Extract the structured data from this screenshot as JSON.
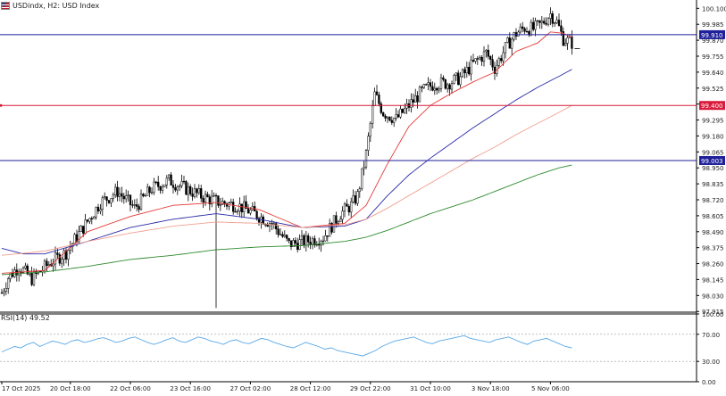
{
  "header": {
    "symbol_text": "USDindx, H2:  USD Index",
    "flag_icon": "us-flag-icon"
  },
  "rsi_label": "RSI(14) 49.52",
  "colors": {
    "bull": "#ffffff",
    "bear": "#000000",
    "ema_fast": "#e53935",
    "ema_mid": "#2a2aa8",
    "ema_slow": "#f0a090",
    "ema_long": "#2e8b2e",
    "hline_blue": "#1f1f9a",
    "hline_red": "#d81b3a",
    "rsi": "#5aa8e6"
  },
  "chart_data": [
    {
      "type": "candlestick",
      "ylim": [
        97.91,
        100.16
      ],
      "price_ticks": [
        "100.100",
        "99.985",
        "99.870",
        "99.755",
        "99.640",
        "99.525",
        "99.410",
        "99.295",
        "99.180",
        "99.065",
        "98.950",
        "98.835",
        "98.720",
        "98.605",
        "98.490",
        "98.375",
        "98.260",
        "98.145",
        "98.030",
        "97.915"
      ],
      "x_ticks": [
        {
          "index": 0,
          "label": "17 Oct 2025"
        },
        {
          "index": 32,
          "label": "20 Oct 18:00"
        },
        {
          "index": 60,
          "label": "22 Oct 06:00"
        },
        {
          "index": 88,
          "label": "23 Oct 16:00"
        },
        {
          "index": 116,
          "label": "27 Oct 02:00"
        },
        {
          "index": 144,
          "label": "28 Oct 12:00"
        },
        {
          "index": 172,
          "label": "29 Oct 22:00"
        },
        {
          "index": 200,
          "label": "31 Oct 10:00"
        },
        {
          "index": 228,
          "label": "3 Nov 18:00"
        },
        {
          "index": 256,
          "label": "5 Nov 06:00"
        }
      ],
      "hlines": [
        {
          "value": 99.91,
          "label": "99.910",
          "color": "blue"
        },
        {
          "value": 99.4,
          "label": "99.400",
          "color": "red"
        },
        {
          "value": 99.003,
          "label": "99.003",
          "color": "blue"
        }
      ],
      "anchors": [
        [
          0,
          98.05
        ],
        [
          3,
          98.16
        ],
        [
          8,
          98.24
        ],
        [
          14,
          98.15
        ],
        [
          22,
          98.26
        ],
        [
          30,
          98.34
        ],
        [
          38,
          98.52
        ],
        [
          46,
          98.7
        ],
        [
          54,
          98.78
        ],
        [
          62,
          98.66
        ],
        [
          70,
          98.8
        ],
        [
          78,
          98.86
        ],
        [
          86,
          98.8
        ],
        [
          94,
          98.74
        ],
        [
          102,
          98.7
        ],
        [
          110,
          98.68
        ],
        [
          118,
          98.62
        ],
        [
          126,
          98.55
        ],
        [
          134,
          98.4
        ],
        [
          142,
          98.42
        ],
        [
          150,
          98.45
        ],
        [
          158,
          98.62
        ],
        [
          163,
          98.68
        ],
        [
          166,
          98.75
        ],
        [
          170,
          99.05
        ],
        [
          174,
          99.48
        ],
        [
          178,
          99.35
        ],
        [
          184,
          99.3
        ],
        [
          190,
          99.4
        ],
        [
          196,
          99.5
        ],
        [
          202,
          99.56
        ],
        [
          208,
          99.56
        ],
        [
          214,
          99.6
        ],
        [
          220,
          99.7
        ],
        [
          226,
          99.78
        ],
        [
          230,
          99.67
        ],
        [
          236,
          99.84
        ],
        [
          240,
          99.92
        ],
        [
          244,
          99.96
        ],
        [
          248,
          99.95
        ],
        [
          252,
          99.99
        ],
        [
          256,
          100.06
        ],
        [
          259,
          100.0
        ],
        [
          262,
          99.88
        ],
        [
          266,
          99.85
        ]
      ],
      "ema_anchors": {
        "ema_fast": [
          [
            0,
            98.19
          ],
          [
            20,
            98.21
          ],
          [
            40,
            98.49
          ],
          [
            60,
            98.6
          ],
          [
            80,
            98.68
          ],
          [
            100,
            98.7
          ],
          [
            120,
            98.65
          ],
          [
            140,
            98.52
          ],
          [
            160,
            98.55
          ],
          [
            170,
            98.68
          ],
          [
            180,
            98.98
          ],
          [
            190,
            99.25
          ],
          [
            200,
            99.4
          ],
          [
            210,
            99.49
          ],
          [
            220,
            99.57
          ],
          [
            230,
            99.64
          ],
          [
            240,
            99.79
          ],
          [
            250,
            99.85
          ],
          [
            256,
            99.93
          ],
          [
            262,
            99.92
          ],
          [
            266,
            99.89
          ]
        ],
        "ema_mid": [
          [
            0,
            98.37
          ],
          [
            10,
            98.33
          ],
          [
            20,
            98.33
          ],
          [
            40,
            98.42
          ],
          [
            60,
            98.52
          ],
          [
            80,
            98.58
          ],
          [
            100,
            98.62
          ],
          [
            120,
            98.58
          ],
          [
            140,
            98.52
          ],
          [
            160,
            98.53
          ],
          [
            170,
            98.58
          ],
          [
            180,
            98.75
          ],
          [
            190,
            98.9
          ],
          [
            200,
            99.02
          ],
          [
            210,
            99.13
          ],
          [
            220,
            99.24
          ],
          [
            230,
            99.34
          ],
          [
            240,
            99.44
          ],
          [
            250,
            99.53
          ],
          [
            260,
            99.61
          ],
          [
            266,
            99.66
          ]
        ],
        "ema_slow": [
          [
            0,
            98.32
          ],
          [
            20,
            98.35
          ],
          [
            40,
            98.42
          ],
          [
            60,
            98.48
          ],
          [
            80,
            98.53
          ],
          [
            100,
            98.56
          ],
          [
            120,
            98.55
          ],
          [
            140,
            98.52
          ],
          [
            160,
            98.54
          ],
          [
            170,
            98.58
          ],
          [
            180,
            98.66
          ],
          [
            190,
            98.75
          ],
          [
            200,
            98.84
          ],
          [
            210,
            98.93
          ],
          [
            220,
            99.02
          ],
          [
            230,
            99.1
          ],
          [
            240,
            99.19
          ],
          [
            250,
            99.27
          ],
          [
            260,
            99.35
          ],
          [
            266,
            99.4
          ]
        ],
        "ema_long": [
          [
            0,
            98.18
          ],
          [
            20,
            98.2
          ],
          [
            40,
            98.24
          ],
          [
            60,
            98.29
          ],
          [
            80,
            98.32
          ],
          [
            100,
            98.36
          ],
          [
            120,
            98.38
          ],
          [
            140,
            98.39
          ],
          [
            160,
            98.42
          ],
          [
            170,
            98.45
          ],
          [
            180,
            98.5
          ],
          [
            190,
            98.56
          ],
          [
            200,
            98.62
          ],
          [
            210,
            98.67
          ],
          [
            220,
            98.72
          ],
          [
            230,
            98.78
          ],
          [
            240,
            98.84
          ],
          [
            250,
            98.9
          ],
          [
            260,
            98.95
          ],
          [
            266,
            98.97
          ]
        ]
      },
      "spike": {
        "index": 100,
        "low": 97.94
      }
    },
    {
      "type": "line",
      "title": "RSI(14) 49.52",
      "ylim": [
        0,
        100
      ],
      "y_ticks": [
        "100.00",
        "70.00",
        "30.00",
        "0.00"
      ],
      "levels": [
        70,
        30
      ],
      "values": [
        44,
        48,
        52,
        50,
        55,
        58,
        52,
        56,
        60,
        58,
        55,
        60,
        62,
        58,
        60,
        63,
        65,
        62,
        58,
        60,
        64,
        66,
        62,
        58,
        55,
        58,
        62,
        65,
        60,
        58,
        62,
        66,
        64,
        60,
        58,
        55,
        60,
        62,
        58,
        56,
        60,
        64,
        62,
        58,
        55,
        52,
        50,
        54,
        58,
        55,
        52,
        48,
        50,
        46,
        44,
        42,
        40,
        38,
        42,
        46,
        52,
        56,
        60,
        62,
        64,
        66,
        62,
        58,
        56,
        60,
        62,
        64,
        66,
        68,
        64,
        62,
        60,
        58,
        62,
        64,
        66,
        62,
        58,
        55,
        60,
        62,
        64,
        60,
        56,
        52,
        50
      ],
      "last_value": 49.52
    }
  ]
}
